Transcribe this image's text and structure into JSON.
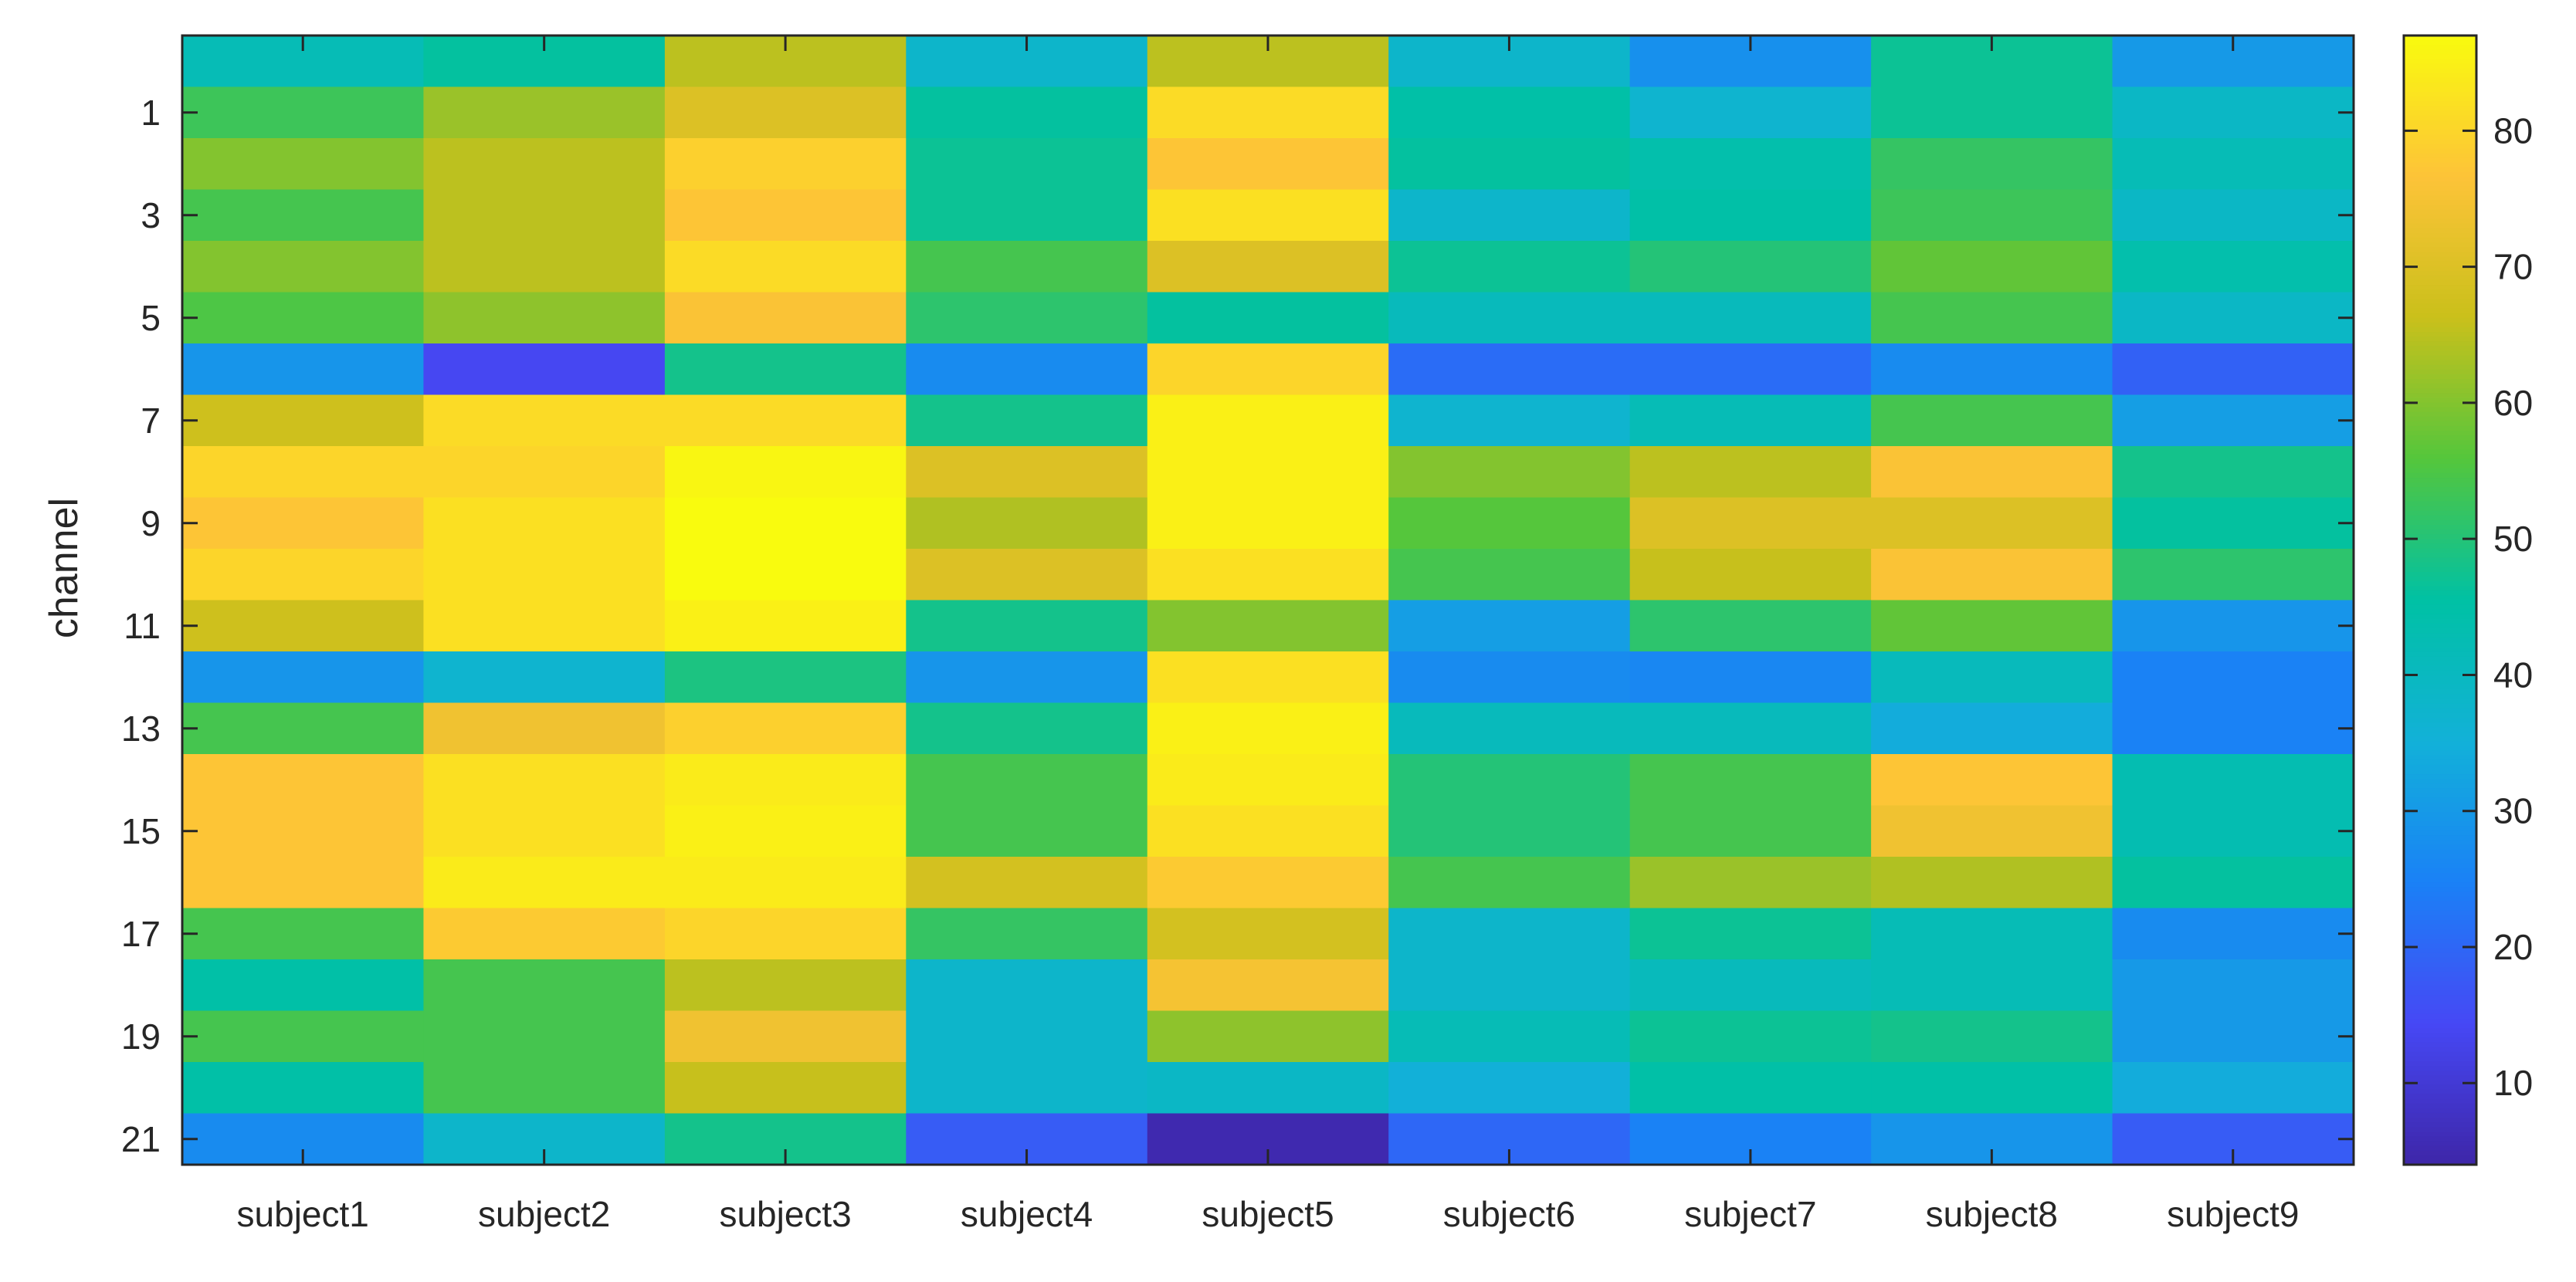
{
  "chart_data": {
    "type": "heatmap",
    "title": "",
    "xlabel": "",
    "ylabel": "channel",
    "categories": [
      "subject1",
      "subject2",
      "subject3",
      "subject4",
      "subject5",
      "subject6",
      "subject7",
      "subject8",
      "subject9"
    ],
    "rows": [
      0,
      1,
      2,
      3,
      4,
      5,
      6,
      7,
      8,
      9,
      10,
      11,
      12,
      13,
      14,
      15,
      16,
      17,
      18,
      19,
      20,
      21
    ],
    "y_tick_labels": [
      "1",
      "3",
      "5",
      "7",
      "9",
      "11",
      "13",
      "15",
      "17",
      "19",
      "21"
    ],
    "y_ticks": [
      1,
      3,
      5,
      7,
      9,
      11,
      13,
      15,
      17,
      19,
      21
    ],
    "colorbar": {
      "min": 4,
      "max": 87,
      "ticks": [
        10,
        20,
        30,
        40,
        50,
        60,
        70,
        80
      ],
      "colormap": "parula"
    },
    "values": [
      [
        42,
        46,
        65,
        38,
        65,
        38,
        28,
        47,
        30
      ],
      [
        53,
        62,
        70,
        46,
        81,
        45,
        37,
        47,
        39
      ],
      [
        60,
        65,
        79,
        47,
        77,
        46,
        44,
        52,
        42
      ],
      [
        54,
        65,
        77,
        47,
        82,
        38,
        45,
        53,
        39
      ],
      [
        60,
        65,
        81,
        54,
        70,
        47,
        50,
        57,
        44
      ],
      [
        55,
        61,
        76,
        51,
        46,
        41,
        41,
        54,
        39
      ],
      [
        29,
        14,
        48,
        27,
        80,
        21,
        21,
        27,
        19
      ],
      [
        67,
        81,
        81,
        48,
        85,
        37,
        42,
        54,
        31
      ],
      [
        80,
        80,
        86,
        70,
        85,
        60,
        65,
        76,
        48
      ],
      [
        77,
        82,
        87,
        64,
        85,
        56,
        70,
        70,
        46
      ],
      [
        80,
        82,
        87,
        70,
        82,
        54,
        66,
        76,
        51
      ],
      [
        67,
        82,
        85,
        48,
        60,
        31,
        51,
        57,
        29
      ],
      [
        29,
        37,
        49,
        29,
        82,
        27,
        26,
        41,
        25
      ],
      [
        54,
        74,
        79,
        48,
        85,
        41,
        41,
        34,
        25
      ],
      [
        77,
        82,
        84,
        54,
        84,
        50,
        54,
        77,
        43
      ],
      [
        77,
        82,
        85,
        54,
        82,
        50,
        54,
        74,
        43
      ],
      [
        77,
        84,
        84,
        68,
        78,
        54,
        62,
        64,
        46
      ],
      [
        54,
        78,
        80,
        52,
        68,
        38,
        47,
        42,
        27
      ],
      [
        45,
        54,
        65,
        38,
        75,
        38,
        41,
        42,
        30
      ],
      [
        54,
        54,
        74,
        38,
        61,
        42,
        47,
        48,
        30
      ],
      [
        45,
        54,
        66,
        38,
        39,
        35,
        45,
        45,
        34
      ],
      [
        27,
        38,
        48,
        18,
        5,
        20,
        25,
        29,
        18
      ]
    ]
  }
}
